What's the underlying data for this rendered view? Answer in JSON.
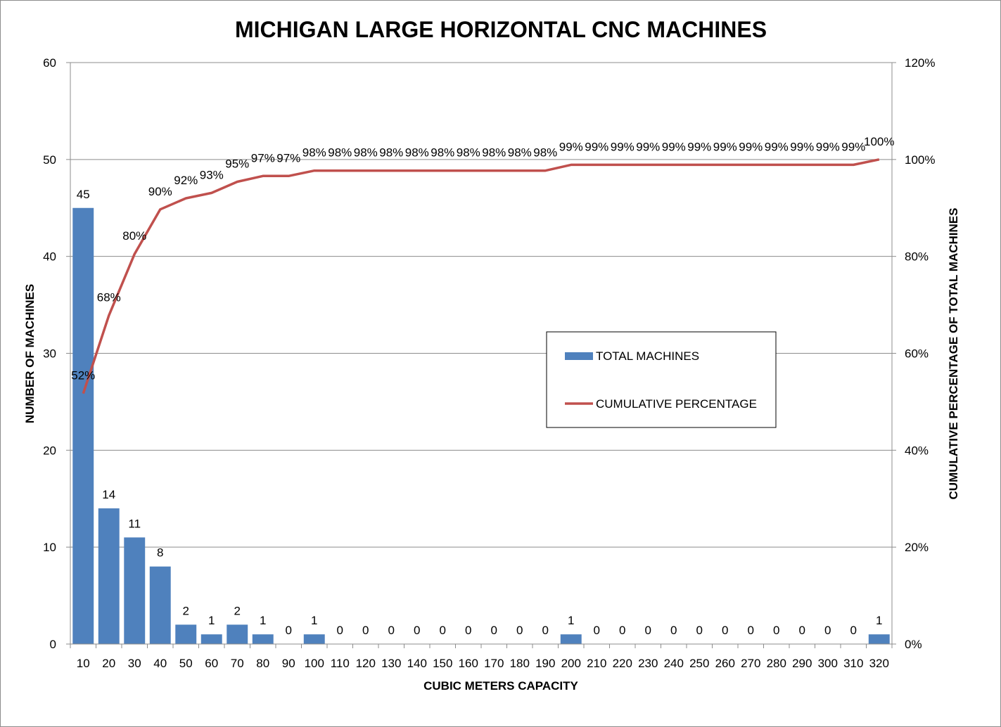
{
  "chart_data": {
    "type": "bar",
    "title": "MICHIGAN LARGE HORIZONTAL CNC MACHINES",
    "xlabel": "CUBIC METERS CAPACITY",
    "ylabel": "NUMBER OF MACHINES",
    "y2label": "CUMULATIVE PERCENTAGE OF TOTAL MACHINES",
    "ylim": [
      0,
      60
    ],
    "y2lim": [
      0,
      1.2
    ],
    "yticks": [
      "0",
      "10",
      "20",
      "30",
      "40",
      "50",
      "60"
    ],
    "y2ticks": [
      "0%",
      "20%",
      "40%",
      "60%",
      "80%",
      "100%",
      "120%"
    ],
    "categories": [
      "10",
      "20",
      "30",
      "40",
      "50",
      "60",
      "70",
      "80",
      "90",
      "100",
      "110",
      "120",
      "130",
      "140",
      "150",
      "160",
      "170",
      "180",
      "190",
      "200",
      "210",
      "220",
      "230",
      "240",
      "250",
      "260",
      "270",
      "280",
      "290",
      "300",
      "310",
      "320"
    ],
    "grid": true,
    "legend_position": "center-right",
    "series": [
      {
        "name": "TOTAL MACHINES",
        "type": "bar",
        "axis": "left",
        "color": "#4f81bd",
        "values": [
          45,
          14,
          11,
          8,
          2,
          1,
          2,
          1,
          0,
          1,
          0,
          0,
          0,
          0,
          0,
          0,
          0,
          0,
          0,
          1,
          0,
          0,
          0,
          0,
          0,
          0,
          0,
          0,
          0,
          0,
          0,
          1
        ],
        "labels": [
          "45",
          "14",
          "11",
          "8",
          "2",
          "1",
          "2",
          "1",
          "0",
          "1",
          "0",
          "0",
          "0",
          "0",
          "0",
          "0",
          "0",
          "0",
          "0",
          "1",
          "0",
          "0",
          "0",
          "0",
          "0",
          "0",
          "0",
          "0",
          "0",
          "0",
          "0",
          "1"
        ]
      },
      {
        "name": "CUMULATIVE PERCENTAGE",
        "type": "line",
        "axis": "right",
        "color": "#c0504d",
        "values": [
          0.517,
          0.678,
          0.805,
          0.897,
          0.92,
          0.931,
          0.954,
          0.966,
          0.966,
          0.977,
          0.977,
          0.977,
          0.977,
          0.977,
          0.977,
          0.977,
          0.977,
          0.977,
          0.977,
          0.989,
          0.989,
          0.989,
          0.989,
          0.989,
          0.989,
          0.989,
          0.989,
          0.989,
          0.989,
          0.989,
          0.989,
          1.0
        ],
        "labels": [
          "52%",
          "68%",
          "80%",
          "90%",
          "92%",
          "93%",
          "95%",
          "97%",
          "97%",
          "98%",
          "98%",
          "98%",
          "98%",
          "98%",
          "98%",
          "98%",
          "98%",
          "98%",
          "98%",
          "99%",
          "99%",
          "99%",
          "99%",
          "99%",
          "99%",
          "99%",
          "99%",
          "99%",
          "99%",
          "99%",
          "99%",
          "100%"
        ]
      }
    ]
  }
}
